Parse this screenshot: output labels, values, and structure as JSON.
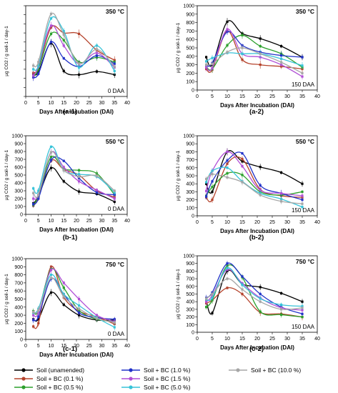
{
  "figure": {
    "series_colors": [
      "#000000",
      "#b5432c",
      "#2ca02c",
      "#2132c8",
      "#b04fd6",
      "#37c3d8",
      "#a6a6a6"
    ],
    "legend": [
      "Soil (unamended)",
      "Soil + BC (0.1 %)",
      "Soil + BC (0.5 %)",
      "Soil + BC (1.0 %)",
      "Soil + BC (1.5 %)",
      "Soil + BC (5.0 %)",
      "Soil + BC (10.0 %)"
    ]
  },
  "chart_data": [
    {
      "type": "line",
      "panel_label": "(a-1)",
      "temperature": "350 °C",
      "daa": "0 DAA",
      "xlabel": "Days After Incubation (DAI)",
      "ylabel": "µg CO2 / g soil-1 / day-1",
      "xlim": [
        0,
        40
      ],
      "ylim": [
        0,
        1000
      ],
      "xticks": [
        0,
        5,
        10,
        15,
        20,
        25,
        30,
        35,
        40
      ],
      "yticks": [
        0,
        100,
        200,
        300,
        400,
        500,
        600,
        700,
        800,
        900,
        1000
      ],
      "yticks_visible": false,
      "x": [
        3,
        5,
        10,
        15,
        21,
        28,
        35
      ],
      "series": [
        {
          "name": "Soil (unamended)",
          "values": [
            240,
            270,
            585,
            280,
            240,
            275,
            240
          ]
        },
        {
          "name": "Soil + BC (0.1 %)",
          "values": [
            260,
            320,
            760,
            700,
            690,
            510,
            400
          ]
        },
        {
          "name": "Soil + BC (0.5 %)",
          "values": [
            220,
            300,
            690,
            620,
            380,
            430,
            380
          ]
        },
        {
          "name": "Soil + BC (1.0 %)",
          "values": [
            210,
            250,
            600,
            420,
            330,
            450,
            360
          ]
        },
        {
          "name": "Soil + BC (1.5 %)",
          "values": [
            230,
            330,
            780,
            560,
            360,
            480,
            320
          ]
        },
        {
          "name": "Soil + BC (5.0 %)",
          "values": [
            300,
            340,
            860,
            720,
            320,
            560,
            280
          ]
        },
        {
          "name": "Soil + BC (10.0 %)",
          "values": [
            340,
            380,
            910,
            680,
            360,
            520,
            330
          ]
        }
      ]
    },
    {
      "type": "line",
      "panel_label": "(a-2)",
      "temperature": "350 °C",
      "daa": "150 DAA",
      "xlabel": "Days After Incubation (DAI)",
      "ylabel": "µg CO2 / g soil-1 / day-1",
      "xlim": [
        0,
        40
      ],
      "ylim": [
        0,
        1000
      ],
      "xticks": [
        0,
        5,
        10,
        15,
        20,
        25,
        30,
        35,
        40
      ],
      "yticks": [
        0,
        100,
        200,
        300,
        400,
        500,
        600,
        700,
        800,
        900,
        1000
      ],
      "yticks_visible": true,
      "x": [
        3,
        5,
        10,
        15,
        21,
        28,
        35
      ],
      "series": [
        {
          "name": "Soil (unamended)",
          "values": [
            390,
            300,
            810,
            670,
            610,
            520,
            390
          ]
        },
        {
          "name": "Soil + BC (0.1 %)",
          "values": [
            250,
            240,
            700,
            360,
            300,
            280,
            250
          ]
        },
        {
          "name": "Soil + BC (0.5 %)",
          "values": [
            280,
            250,
            530,
            650,
            520,
            430,
            270
          ]
        },
        {
          "name": "Soil + BC (1.0 %)",
          "values": [
            290,
            320,
            690,
            530,
            450,
            410,
            390
          ]
        },
        {
          "name": "Soil + BC (1.5 %)",
          "values": [
            270,
            260,
            720,
            430,
            390,
            300,
            160
          ]
        },
        {
          "name": "Soil + BC (5.0 %)",
          "values": [
            340,
            380,
            440,
            430,
            430,
            370,
            290
          ]
        },
        {
          "name": "Soil + BC (10.0 %)",
          "values": [
            300,
            310,
            450,
            500,
            430,
            330,
            200
          ]
        }
      ]
    },
    {
      "type": "line",
      "panel_label": "(b-1)",
      "temperature": "550 °C",
      "daa": "0 DAA",
      "xlabel": "Days After Incubation (DAI)",
      "ylabel": "µg CO2 / g soil-1 / day-1",
      "xlim": [
        0,
        40
      ],
      "ylim": [
        0,
        1000
      ],
      "xticks": [
        0,
        5,
        10,
        15,
        20,
        25,
        30,
        35,
        40
      ],
      "yticks": [
        0,
        100,
        200,
        300,
        400,
        500,
        600,
        700,
        800,
        900,
        1000
      ],
      "yticks_visible": true,
      "x": [
        3,
        5,
        10,
        15,
        21,
        28,
        35
      ],
      "series": [
        {
          "name": "Soil (unamended)",
          "values": [
            140,
            230,
            590,
            420,
            290,
            260,
            160
          ]
        },
        {
          "name": "Soil + BC (0.1 %)",
          "values": [
            110,
            210,
            680,
            570,
            500,
            300,
            220
          ]
        },
        {
          "name": "Soil + BC (0.5 %)",
          "values": [
            120,
            240,
            730,
            580,
            560,
            520,
            250
          ]
        },
        {
          "name": "Soil + BC (1.0 %)",
          "values": [
            130,
            200,
            690,
            680,
            460,
            280,
            250
          ]
        },
        {
          "name": "Soil + BC (1.5 %)",
          "values": [
            200,
            250,
            790,
            600,
            420,
            310,
            200
          ]
        },
        {
          "name": "Soil + BC (5.0 %)",
          "values": [
            330,
            300,
            860,
            560,
            510,
            480,
            280
          ]
        },
        {
          "name": "Soil + BC (10.0 %)",
          "values": [
            270,
            250,
            790,
            560,
            480,
            490,
            300
          ]
        }
      ]
    },
    {
      "type": "line",
      "panel_label": "(b-2)",
      "temperature": "550 °C",
      "daa": "150 DAA",
      "xlabel": "Days After Incubation (DAI)",
      "ylabel": "µg CO2 / g soil-1 / day-1",
      "xlim": [
        0,
        40
      ],
      "ylim": [
        0,
        1000
      ],
      "xticks": [
        0,
        5,
        10,
        15,
        20,
        25,
        30,
        35,
        40
      ],
      "yticks": [
        0,
        100,
        200,
        300,
        400,
        500,
        600,
        700,
        800,
        900,
        1000
      ],
      "yticks_visible": true,
      "x": [
        3,
        5,
        10,
        15,
        21,
        28,
        35
      ],
      "series": [
        {
          "name": "Soil (unamended)",
          "values": [
            400,
            300,
            800,
            680,
            610,
            540,
            400
          ]
        },
        {
          "name": "Soil + BC (0.1 %)",
          "values": [
            230,
            200,
            650,
            710,
            330,
            250,
            230
          ]
        },
        {
          "name": "Soil + BC (0.5 %)",
          "values": [
            250,
            360,
            530,
            510,
            300,
            260,
            300
          ]
        },
        {
          "name": "Soil + BC (1.0 %)",
          "values": [
            240,
            430,
            690,
            780,
            380,
            280,
            200
          ]
        },
        {
          "name": "Soil + BC (1.5 %)",
          "values": [
            310,
            560,
            800,
            620,
            320,
            280,
            250
          ]
        },
        {
          "name": "Soil + BC (5.0 %)",
          "values": [
            420,
            560,
            600,
            430,
            280,
            210,
            110
          ]
        },
        {
          "name": "Soil + BC (10.0 %)",
          "values": [
            460,
            520,
            480,
            420,
            260,
            180,
            150
          ]
        }
      ]
    },
    {
      "type": "line",
      "panel_label": "(c-1)",
      "temperature": "750 °C",
      "daa": "0 DAA",
      "xlabel": "Days After Incubation (DAI)",
      "ylabel": "µg CO2 / g soil-1 / day-1",
      "xlim": [
        0,
        40
      ],
      "ylim": [
        0,
        1000
      ],
      "xticks": [
        0,
        5,
        10,
        15,
        20,
        25,
        30,
        35,
        40
      ],
      "yticks": [
        0,
        100,
        200,
        300,
        400,
        500,
        600,
        700,
        800,
        900,
        1000
      ],
      "yticks_visible": true,
      "x": [
        3,
        5,
        10,
        15,
        21,
        28,
        35
      ],
      "series": [
        {
          "name": "Soil (unamended)",
          "values": [
            250,
            250,
            580,
            430,
            300,
            240,
            240
          ]
        },
        {
          "name": "Soil + BC (0.1 %)",
          "values": [
            160,
            200,
            900,
            520,
            350,
            280,
            190
          ]
        },
        {
          "name": "Soil + BC (0.5 %)",
          "values": [
            350,
            350,
            870,
            640,
            360,
            250,
            220
          ]
        },
        {
          "name": "Soil + BC (1.0 %)",
          "values": [
            240,
            280,
            750,
            560,
            330,
            270,
            250
          ]
        },
        {
          "name": "Soil + BC (1.5 %)",
          "values": [
            300,
            330,
            860,
            700,
            500,
            300,
            220
          ]
        },
        {
          "name": "Soil + BC (5.0 %)",
          "values": [
            330,
            380,
            800,
            560,
            420,
            270,
            150
          ]
        },
        {
          "name": "Soil + BC (10.0 %)",
          "values": [
            340,
            360,
            760,
            530,
            380,
            260,
            210
          ]
        }
      ]
    },
    {
      "type": "line",
      "panel_label": "(c-2)",
      "temperature": "750 °C",
      "daa": "150 DAA",
      "xlabel": "Days After Incubation (DAI)",
      "ylabel": "µg CO2 / g soil-1 / day-1",
      "xlim": [
        0,
        40
      ],
      "ylim": [
        0,
        1000
      ],
      "xticks": [
        0,
        5,
        10,
        15,
        20,
        25,
        30,
        35,
        40
      ],
      "yticks": [
        0,
        100,
        200,
        300,
        400,
        500,
        600,
        700,
        800,
        900,
        1000
      ],
      "yticks_visible": true,
      "x": [
        3,
        5,
        10,
        15,
        21,
        28,
        35
      ],
      "series": [
        {
          "name": "Soil (unamended)",
          "values": [
            420,
            250,
            800,
            630,
            590,
            510,
            400
          ]
        },
        {
          "name": "Soil + BC (0.1 %)",
          "values": [
            380,
            420,
            580,
            500,
            260,
            240,
            200
          ]
        },
        {
          "name": "Soil + BC (0.5 %)",
          "values": [
            330,
            420,
            870,
            720,
            270,
            230,
            200
          ]
        },
        {
          "name": "Soil + BC (1.0 %)",
          "values": [
            450,
            520,
            900,
            730,
            500,
            330,
            240
          ]
        },
        {
          "name": "Soil + BC (1.5 %)",
          "values": [
            400,
            480,
            820,
            640,
            450,
            320,
            290
          ]
        },
        {
          "name": "Soil + BC (5.0 %)",
          "values": [
            430,
            450,
            840,
            620,
            440,
            360,
            340
          ]
        },
        {
          "name": "Soil + BC (10.0 %)",
          "values": [
            440,
            500,
            700,
            560,
            400,
            300,
            320
          ]
        }
      ]
    }
  ]
}
